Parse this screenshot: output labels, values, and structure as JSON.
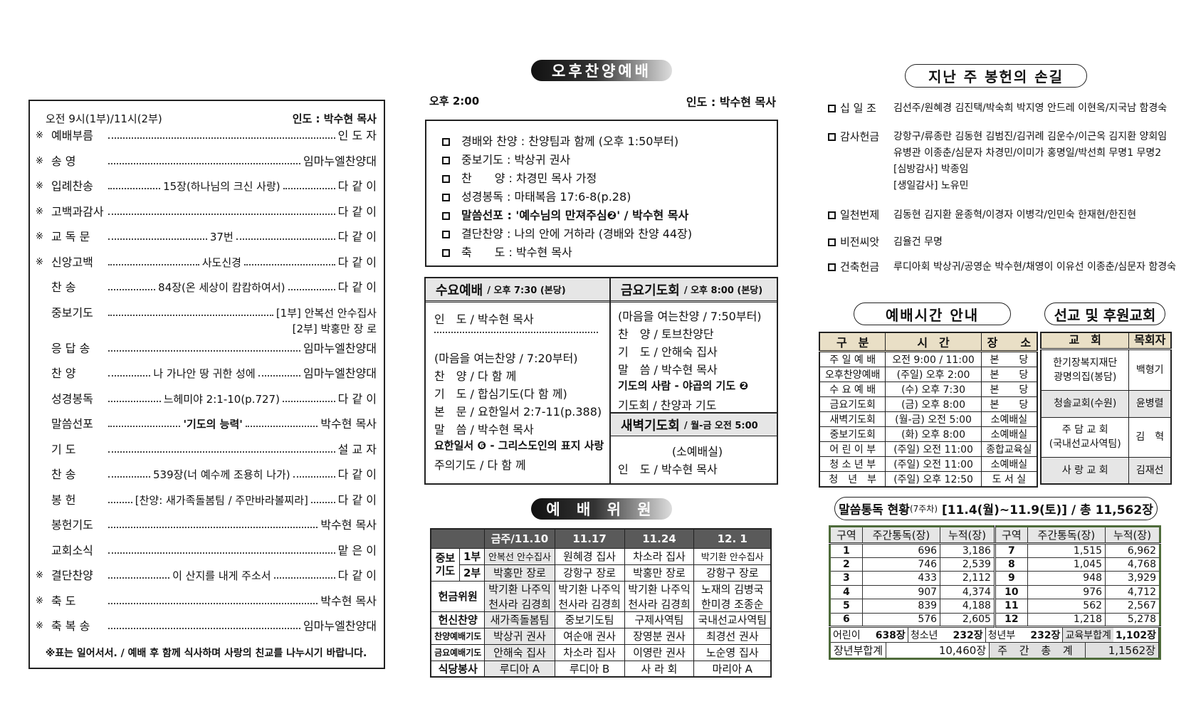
{
  "order": {
    "header_left": "오전 9시(1부)/11시(2부)",
    "header_right": "인도 : 박수현 목사",
    "items": [
      {
        "mark": "※",
        "label": "예배부름",
        "mid": "",
        "right": "인 도 자"
      },
      {
        "mark": "※",
        "label": "송 영",
        "mid": "",
        "right": "임마누엘찬양대"
      },
      {
        "mark": "※",
        "label": "입례찬송",
        "mid": "15장(하나님의 크신 사랑)",
        "right": "다 같 이"
      },
      {
        "mark": "※",
        "label": "고백과감사",
        "mid": "",
        "right": "다 같 이"
      },
      {
        "mark": "※",
        "label": "교 독 문",
        "mid": "37번",
        "right": "다 같 이"
      },
      {
        "mark": "※",
        "label": "신앙고백",
        "mid": "사도신경",
        "right": "다 같 이"
      },
      {
        "mark": "",
        "label": "찬 송",
        "mid": "84장(온 세상이 캄캄하여서)",
        "right": "다 같 이"
      },
      {
        "mark": "",
        "label": "중보기도",
        "mid": "",
        "right": "[1부] 안복선 안수집사",
        "right2": "[2부] 박홍만 장 로"
      },
      {
        "mark": "",
        "label": "응 답 송",
        "mid": "",
        "right": "임마누엘찬양대"
      },
      {
        "mark": "",
        "label": "찬 양",
        "mid": "나 가나안 땅 귀한 성에",
        "right": "임마누엘찬양대"
      },
      {
        "mark": "",
        "label": "성경봉독",
        "mid": "느헤미야 2:1-10(p.727)",
        "right": "다 같 이"
      },
      {
        "mark": "",
        "label": "말씀선포",
        "mid": "'기도의 능력'",
        "right": "박수현 목사"
      },
      {
        "mark": "",
        "label": "기 도",
        "mid": "",
        "right": "설 교 자"
      },
      {
        "mark": "",
        "label": "찬 송",
        "mid": "539장(너 예수께 조용히 나가)",
        "right": "다 같 이"
      },
      {
        "mark": "",
        "label": "봉 헌",
        "mid": "[찬양: 새가족돌봄팀 / 주만바라볼찌라]",
        "right": "다 같 이"
      },
      {
        "mark": "",
        "label": "봉헌기도",
        "mid": "",
        "right": "박수현 목사"
      },
      {
        "mark": "",
        "label": "교회소식",
        "mid": "",
        "right": "맡 은 이"
      },
      {
        "mark": "※",
        "label": "결단찬양",
        "mid": "이 산지를 내게 주소서",
        "right": "다 같 이"
      },
      {
        "mark": "※",
        "label": "축 도",
        "mid": "",
        "right": "박수현 목사"
      },
      {
        "mark": "※",
        "label": "축 복 송",
        "mid": "",
        "right": "임마누엘찬양대"
      }
    ],
    "footer": "※표는 일어서서. / 예배 후 함께 식사하며 사랑의 친교를 나누시기 바랍니다."
  },
  "afternoon": {
    "title": "오후찬양예배",
    "time": "오후 2:00",
    "leader": "인도 : 박수현 목사",
    "items": [
      "경배와 찬양 : 찬양팀과 함께 (오후 1:50부터)",
      "중보기도 : 박상귀 권사",
      "찬　　양 : 차경민 목사 가정",
      "성경봉독 : 마태복음 17:6-8(p.28)",
      "말씀선포 : '예수님의 만져주심❷' / 박수현 목사",
      "결단찬양 : 나의 안에 거하라 (경배와 찬양 44장)",
      "축　　도 : 박수현 목사"
    ]
  },
  "wednesday": {
    "title": "수요예배",
    "sub": "/ 오후 7:30 (본당)",
    "lines": [
      "인　도 / 박수현 목사",
      "",
      "(마음을 여는찬양 / 7:20부터)",
      "찬　양 / 다 함 께",
      "기　도 / 합심기도(다 함 께)",
      "본　문 / 요한일서 2:7-11(p.388)",
      "말　씀 / 박수현 목사",
      "요한일서 ❻ - 그리스도인의 표지 사랑",
      "주의기도 / 다 함 께"
    ]
  },
  "friday": {
    "title": "금요기도회",
    "sub": "/ 오후 8:00 (본당)",
    "lines": [
      "(마음을 여는찬양 / 7:50부터)",
      "찬　양 / 토브찬양단",
      "기　도 / 안해숙 집사",
      "말　씀 / 박수현 목사",
      "기도의 사람 - 야곱의 기도 ❷",
      "기도회 / 찬양과 기도"
    ]
  },
  "dawn": {
    "title": "새벽기도회",
    "sub": "/ 월-금 오전 5:00",
    "lines": [
      "(소예배실)",
      "인　도 / 박수현 목사"
    ]
  },
  "duty": {
    "title": "예 배 위 원",
    "columns": [
      "금주/11.10",
      "11.17",
      "11.24",
      "12. 1"
    ],
    "group_label": "중보\n기도",
    "rows": [
      {
        "label": "1부",
        "cells": [
          "안복선 안수집사",
          "원혜경 집사",
          "차소라 집사",
          "박기환 안수집사"
        ]
      },
      {
        "label": "2부",
        "cells": [
          "박홍만 장로",
          "강항구 장로",
          "박홍만 장로",
          "강항구 장로"
        ]
      },
      {
        "label": "헌금위원",
        "cells": [
          "박기환 나주익\n천사라 김경희",
          "박기환 나주익\n천사라 김경희",
          "박기환 나주익\n천사라 김경희",
          "노재의 김병국\n한미경 조종순"
        ]
      },
      {
        "label": "헌신찬양",
        "cells": [
          "새가족돌봄팀",
          "중보기도팀",
          "구제사역팀",
          "국내선교사역팀"
        ]
      },
      {
        "label": "찬양예배기도",
        "cells": [
          "박상귀 권사",
          "여순애 권사",
          "장영분 권사",
          "최경선 권사"
        ]
      },
      {
        "label": "금요예배기도",
        "cells": [
          "안해숙 집사",
          "차소라 집사",
          "이영란 권사",
          "노순영 집사"
        ]
      },
      {
        "label": "식당봉사",
        "cells": [
          "루디아 A",
          "루디아 B",
          "사 라 회",
          "마리아 A"
        ]
      }
    ]
  },
  "offering": {
    "title": "지난 주 봉헌의 손길",
    "items": [
      {
        "label": "십 일 조",
        "lines": [
          "김선주/원혜경 김진택/박숙희 박지영 안드레 이현옥/지국남 함경숙"
        ]
      },
      {
        "label": "감사헌금",
        "lines": [
          "강항구/류종란 김동현 김범진/김귀례 김운수/이근옥 김지환 양회임",
          "유병관 이종춘/심문자 차경민/이미가 홍명일/박선희 무명1 무명2",
          "[심방감사] 박종임",
          "[생일감사] 노유민"
        ]
      },
      {
        "label": "일천번제",
        "lines": [
          "김동현 김지환 윤종혁/이경자 이병각/인민숙 한재현/한진현"
        ]
      },
      {
        "label": "비전씨앗",
        "lines": [
          "김율건 무명"
        ]
      },
      {
        "label": "건축헌금",
        "lines": [
          "루디아회 박상귀/공영순 박수현/채영이 이유선 이종춘/심문자 함경숙"
        ]
      }
    ]
  },
  "times": {
    "title": "예배시간 안내",
    "headers": [
      "구　분",
      "시　간",
      "장　　소"
    ],
    "rows": [
      [
        "주 일 예 배",
        "오전 9:00 / 11:00",
        "본　　당"
      ],
      [
        "오후찬양예배",
        "(주일) 오후 2:00",
        "본　　당"
      ],
      [
        "수 요 예 배",
        "(수) 오후 7:30",
        "본　　당"
      ],
      [
        "금요기도회",
        "(금) 오후 8:00",
        "본　　당"
      ],
      [
        "새벽기도회",
        "(월-금) 오전 5:00",
        "소예배실"
      ],
      [
        "중보기도회",
        "(화) 오후 8:00",
        "소예배실"
      ],
      [
        "어 린 이 부",
        "(주일) 오전 11:00",
        "종합교육실"
      ],
      [
        "청 소 년 부",
        "(주일) 오전 11:00",
        "소예배실"
      ],
      [
        "청　년　부",
        "(주일) 오후 12:50",
        "도 서 실"
      ]
    ]
  },
  "missions": {
    "title": "선교 및 후원교회",
    "headers": [
      "교　회",
      "목회자"
    ],
    "rows": [
      [
        "한기장복지재단\n광명의집(봉담)",
        "백형기"
      ],
      [
        "청솔교회(수원)",
        "윤병렬"
      ],
      [
        "주 담 교 회\n(국내선교사역팀)",
        "김　혁"
      ],
      [
        "사 랑 교 회",
        "김재선"
      ]
    ]
  },
  "reading": {
    "title": "말씀통독 현황",
    "title_small": "(7주차)",
    "title_rest": "[11.4(월)~11.9(토)] / 총 11,562장",
    "headers": [
      "구역",
      "주간통독(장)",
      "누적(장)",
      "구역",
      "주간통독(장)",
      "누적(장)"
    ],
    "rows": [
      [
        "1",
        "696",
        "3,186",
        "7",
        "1,515",
        "6,962"
      ],
      [
        "2",
        "746",
        "2,539",
        "8",
        "1,045",
        "4,768"
      ],
      [
        "3",
        "433",
        "2,112",
        "9",
        "948",
        "3,929"
      ],
      [
        "4",
        "907",
        "4,374",
        "10",
        "976",
        "4,712"
      ],
      [
        "5",
        "839",
        "4,188",
        "11",
        "562",
        "2,567"
      ],
      [
        "6",
        "576",
        "2,605",
        "12",
        "1,218",
        "5,278"
      ]
    ],
    "summary": {
      "children_label": "어린이",
      "children": "638장",
      "youth_label": "청소년",
      "youth": "232장",
      "young_label": "청년부",
      "young": "232장",
      "edu_label": "교육부합계",
      "edu": "1,102장",
      "adult_label": "장년부합계",
      "adult": "10,460장",
      "week_label": "주 간 총 계",
      "week": "1,1562장"
    }
  }
}
